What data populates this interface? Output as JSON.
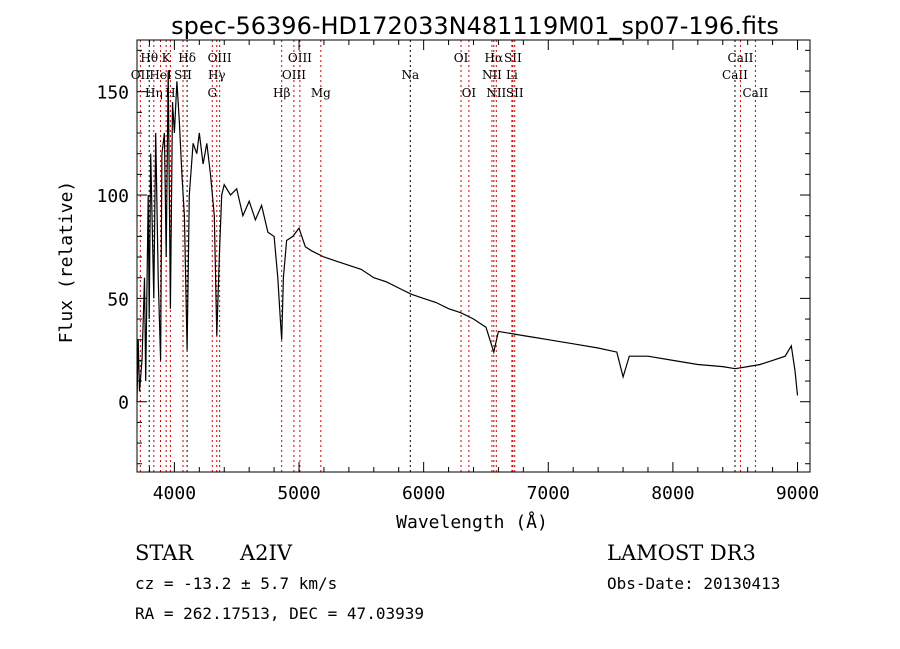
{
  "chart_data": {
    "type": "line",
    "title": "spec-56396-HD172033N481119M01_sp07-196.fits",
    "xlabel": "Wavelength (Å)",
    "ylabel": "Flux (relative)",
    "xlim": [
      3700,
      9100
    ],
    "ylim": [
      -34,
      175
    ],
    "xticks": [
      4000,
      5000,
      6000,
      7000,
      8000,
      9000
    ],
    "yticks": [
      0,
      50,
      100,
      150
    ],
    "series": [
      {
        "name": "spectrum",
        "x": [
          3700,
          3710,
          3720,
          3740,
          3760,
          3770,
          3790,
          3798,
          3810,
          3835,
          3850,
          3870,
          3889,
          3900,
          3920,
          3934,
          3950,
          3968,
          3985,
          4000,
          4020,
          4040,
          4060,
          4080,
          4102,
          4120,
          4150,
          4180,
          4200,
          4230,
          4260,
          4290,
          4320,
          4340,
          4360,
          4380,
          4400,
          4450,
          4500,
          4550,
          4600,
          4650,
          4700,
          4750,
          4800,
          4830,
          4850,
          4861,
          4875,
          4900,
          4950,
          5000,
          5050,
          5100,
          5200,
          5300,
          5400,
          5500,
          5600,
          5700,
          5800,
          5900,
          6000,
          6100,
          6200,
          6300,
          6400,
          6500,
          6563,
          6600,
          6700,
          6800,
          6900,
          7000,
          7200,
          7400,
          7550,
          7600,
          7650,
          7800,
          8000,
          8200,
          8400,
          8500,
          8600,
          8700,
          8800,
          8900,
          8950,
          8980,
          9000
        ],
        "y": [
          0,
          30,
          5,
          20,
          60,
          10,
          100,
          40,
          120,
          50,
          130,
          60,
          20,
          120,
          130,
          70,
          160,
          45,
          145,
          130,
          155,
          135,
          110,
          90,
          25,
          100,
          125,
          120,
          130,
          115,
          125,
          110,
          90,
          32,
          70,
          100,
          105,
          100,
          103,
          90,
          97,
          88,
          95,
          82,
          80,
          60,
          40,
          30,
          60,
          78,
          80,
          84,
          75,
          73,
          70,
          68,
          66,
          64,
          60,
          58,
          55,
          52,
          50,
          48,
          45,
          43,
          40,
          36,
          24,
          34,
          33,
          32,
          31,
          30,
          28,
          26,
          24,
          12,
          22,
          22,
          20,
          18,
          17,
          16,
          17,
          18,
          20,
          22,
          27,
          15,
          3
        ]
      }
    ],
    "lines": [
      {
        "label": "OII",
        "wave": 3727,
        "row": 2,
        "color": "#cc0000"
      },
      {
        "label": "Hθ",
        "wave": 3798,
        "row": 1,
        "color": "#000000"
      },
      {
        "label": "Hη",
        "wave": 3835,
        "row": 3,
        "color": "#cc0000"
      },
      {
        "label": "HeI",
        "wave": 3889,
        "row": 2,
        "color": "#cc0000"
      },
      {
        "label": "K",
        "wave": 3934,
        "row": 1,
        "color": "#cc0000"
      },
      {
        "label": "H",
        "wave": 3968,
        "row": 3,
        "color": "#cc0000"
      },
      {
        "label": "SII",
        "wave": 4069,
        "row": 2,
        "color": "#cc0000"
      },
      {
        "label": "Hδ",
        "wave": 4102,
        "row": 1,
        "color": "#000000"
      },
      {
        "label": "G",
        "wave": 4304,
        "row": 3,
        "color": "#cc0000"
      },
      {
        "label": "Hγ",
        "wave": 4340,
        "row": 2,
        "color": "#cc0000"
      },
      {
        "label": "OIII",
        "wave": 4363,
        "row": 1,
        "color": "#cc0000"
      },
      {
        "label": "Hβ",
        "wave": 4861,
        "row": 3,
        "color": "#cc0000"
      },
      {
        "label": "OIII",
        "wave": 4959,
        "row": 2,
        "color": "#cc0000"
      },
      {
        "label": "OIII",
        "wave": 5007,
        "row": 1,
        "color": "#cc0000"
      },
      {
        "label": "Mg",
        "wave": 5175,
        "row": 3,
        "color": "#cc0000"
      },
      {
        "label": "Na",
        "wave": 5893,
        "row": 2,
        "color": "#000000"
      },
      {
        "label": "OI",
        "wave": 6300,
        "row": 1,
        "color": "#cc0000"
      },
      {
        "label": "OI",
        "wave": 6363,
        "row": 3,
        "color": "#cc0000"
      },
      {
        "label": "NII",
        "wave": 6548,
        "row": 2,
        "color": "#cc0000"
      },
      {
        "label": "Hα",
        "wave": 6563,
        "row": 1,
        "color": "#cc0000"
      },
      {
        "label": "NII",
        "wave": 6583,
        "row": 3,
        "color": "#cc0000"
      },
      {
        "label": "Li",
        "wave": 6708,
        "row": 2,
        "color": "#cc0000"
      },
      {
        "label": "SII",
        "wave": 6716,
        "row": 1,
        "color": "#cc0000"
      },
      {
        "label": "SII",
        "wave": 6731,
        "row": 3,
        "color": "#cc0000"
      },
      {
        "label": "CaII",
        "wave": 8498,
        "row": 2,
        "color": "#000000"
      },
      {
        "label": "CaII",
        "wave": 8542,
        "row": 1,
        "color": "#cc0000"
      },
      {
        "label": "CaII",
        "wave": 8662,
        "row": 3,
        "color": "#cc0000"
      }
    ]
  },
  "info": {
    "class": "STAR",
    "subclass": "A2IV",
    "cz": "cz = -13.2 ± 5.7 km/s",
    "coords": "RA = 262.17513, DEC =  47.03939",
    "survey": "LAMOST DR3",
    "obs_date": "Obs-Date: 20130413"
  }
}
